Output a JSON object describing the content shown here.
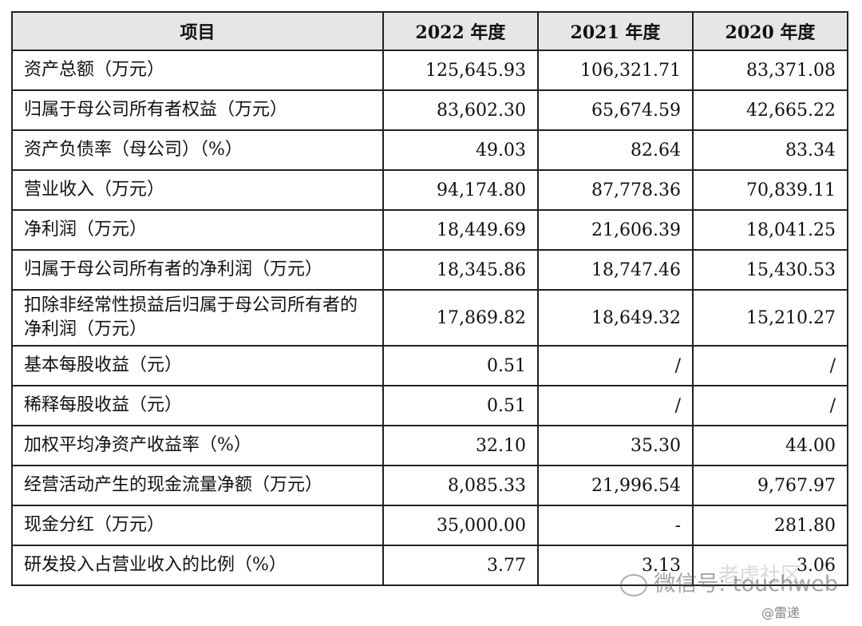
{
  "table": {
    "headers": [
      "项目",
      "2022 年度",
      "2021 年度",
      "2020 年度"
    ],
    "rows": [
      {
        "item": "资产总额（万元）",
        "v2022": "125,645.93",
        "v2021": "106,321.71",
        "v2020": "83,371.08"
      },
      {
        "item": "归属于母公司所有者权益（万元）",
        "v2022": "83,602.30",
        "v2021": "65,674.59",
        "v2020": "42,665.22"
      },
      {
        "item": "资产负债率（母公司）（%）",
        "v2022": "49.03",
        "v2021": "82.64",
        "v2020": "83.34"
      },
      {
        "item": "营业收入（万元）",
        "v2022": "94,174.80",
        "v2021": "87,778.36",
        "v2020": "70,839.11"
      },
      {
        "item": "净利润（万元）",
        "v2022": "18,449.69",
        "v2021": "21,606.39",
        "v2020": "18,041.25"
      },
      {
        "item": "归属于母公司所有者的净利润（万元）",
        "v2022": "18,345.86",
        "v2021": "18,747.46",
        "v2020": "15,430.53"
      },
      {
        "item": "扣除非经常性损益后归属于母公司所有者的净利润（万元）",
        "v2022": "17,869.82",
        "v2021": "18,649.32",
        "v2020": "15,210.27"
      },
      {
        "item": "基本每股收益（元）",
        "v2022": "0.51",
        "v2021": "/",
        "v2020": "/"
      },
      {
        "item": "稀释每股收益（元）",
        "v2022": "0.51",
        "v2021": "/",
        "v2020": "/"
      },
      {
        "item": "加权平均净资产收益率（%）",
        "v2022": "32.10",
        "v2021": "35.30",
        "v2020": "44.00"
      },
      {
        "item": "经营活动产生的现金流量净额（万元）",
        "v2022": "8,085.33",
        "v2021": "21,996.54",
        "v2020": "9,767.97"
      },
      {
        "item": "现金分红（万元）",
        "v2022": "35,000.00",
        "v2021": "-",
        "v2020": "281.80"
      },
      {
        "item": "研发投入占营业收入的比例（%）",
        "v2022": "3.77",
        "v2021": "3.13",
        "v2020": "3.06"
      }
    ]
  },
  "watermark": {
    "wechat_text": "微信号: touchweb",
    "background_text": "老虎社区",
    "source_text": "@雷递"
  }
}
